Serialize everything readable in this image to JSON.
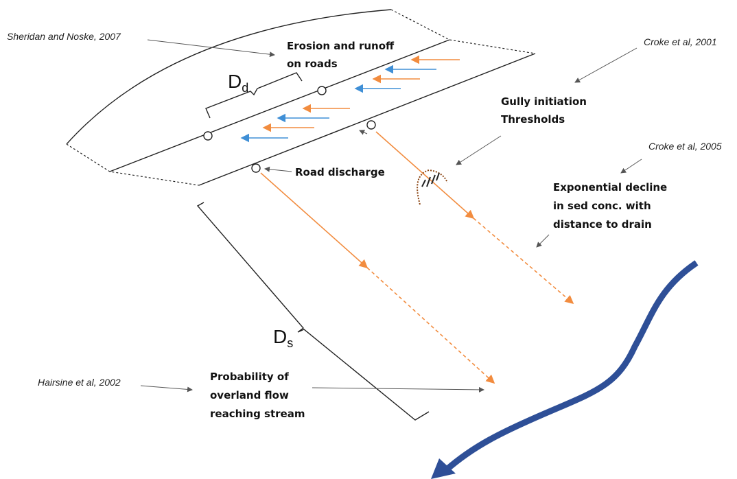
{
  "labels": {
    "sheridan": "Sheridan and Noske, 2007",
    "erosion": [
      "Erosion and runoff",
      "on roads"
    ],
    "croke2001": "Croke et al, 2001",
    "gully": [
      "Gully initiation",
      "Thresholds"
    ],
    "croke2005": "Croke et al, 2005",
    "road_discharge": "Road discharge",
    "exponential": [
      "Exponential decline",
      "in sed conc. with",
      "distance to drain"
    ],
    "dd": {
      "main": "D",
      "sub": "d"
    },
    "ds": {
      "main": "D",
      "sub": "s"
    },
    "hairsine": "Hairsine et al, 2002",
    "probability": [
      "Probability of",
      "overland flow",
      "reaching stream"
    ]
  }
}
